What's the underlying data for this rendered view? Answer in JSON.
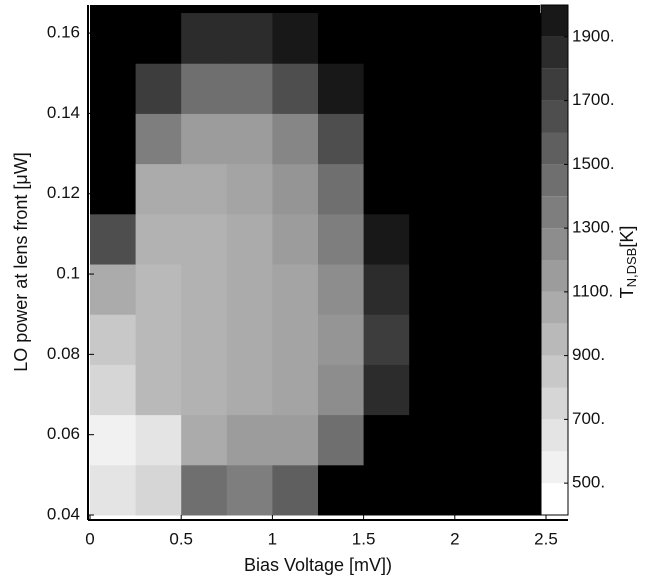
{
  "chart_data": {
    "type": "heatmap",
    "x_label": "Bias Voltage [mV])",
    "y_label": "LO power at lens front  [μW]",
    "colorbar_label": {
      "symbol": "T",
      "subscript": "N,DSB",
      "unit": "[K]"
    },
    "xlim": [
      0,
      2.5
    ],
    "xticks": [
      0,
      0.5,
      1,
      1.5,
      2,
      2.5
    ],
    "ylim": [
      0.04,
      0.167
    ],
    "yticks": [
      0.04,
      0.06,
      0.08,
      0.1,
      0.12,
      0.14,
      0.16
    ],
    "x_edges": [
      0,
      0.25,
      0.5,
      0.75,
      1,
      1.25,
      1.5,
      1.75,
      2,
      2.25,
      2.47
    ],
    "y_edges": [
      0.04,
      0.0525,
      0.065,
      0.0775,
      0.09,
      0.1025,
      0.115,
      0.1275,
      0.14,
      0.1525,
      0.165
    ],
    "z": [
      [
        600,
        700,
        1400,
        1300,
        1500,
        2000,
        2000,
        2000,
        2000,
        2000
      ],
      [
        500,
        600,
        1000,
        1100,
        1100,
        1400,
        2000,
        2000,
        2000,
        2000
      ],
      [
        700,
        900,
        950,
        1000,
        1050,
        1200,
        1800,
        2000,
        2000,
        2000
      ],
      [
        800,
        900,
        950,
        1000,
        1050,
        1150,
        1700,
        2000,
        2000,
        2000
      ],
      [
        1000,
        900,
        950,
        1000,
        1050,
        1200,
        1800,
        2000,
        2000,
        2000
      ],
      [
        1600,
        950,
        950,
        1000,
        1100,
        1300,
        1900,
        2000,
        2000,
        2000
      ],
      [
        2000,
        1000,
        1000,
        1050,
        1150,
        1400,
        2000,
        2000,
        2000,
        2000
      ],
      [
        2000,
        1300,
        1100,
        1100,
        1250,
        1600,
        2000,
        2000,
        2000,
        2000
      ],
      [
        2000,
        1700,
        1400,
        1400,
        1600,
        1900,
        2000,
        2000,
        2000,
        2000
      ],
      [
        2000,
        2000,
        1800,
        1800,
        1900,
        2000,
        2000,
        2000,
        2000,
        2000
      ]
    ],
    "zlim": [
      400,
      2000
    ],
    "colorbar_levels": [
      400,
      500,
      600,
      700,
      800,
      900,
      1000,
      1100,
      1200,
      1300,
      1400,
      1500,
      1600,
      1700,
      1800,
      1900,
      2000
    ],
    "zticks": [
      {
        "value": 500,
        "label": "500."
      },
      {
        "value": 700,
        "label": "700."
      },
      {
        "value": 900,
        "label": "900."
      },
      {
        "value": 1100,
        "label": "1100."
      },
      {
        "value": 1300,
        "label": "1300."
      },
      {
        "value": 1500,
        "label": "1500."
      },
      {
        "value": 1700,
        "label": "1700."
      },
      {
        "value": 1900,
        "label": "1900."
      }
    ]
  }
}
